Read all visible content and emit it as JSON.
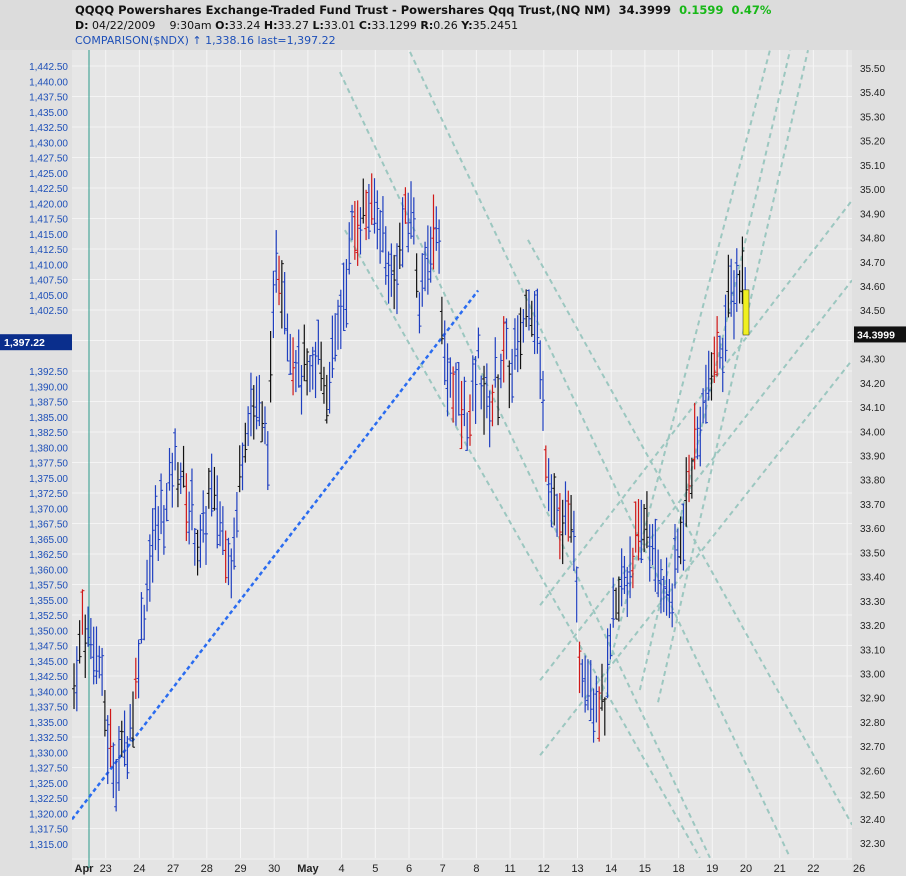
{
  "header": {
    "title": "QQQQ Powershares Exchange-Traded Fund Trust - Powershares Qqq Trust,(NQ NM)",
    "last": "34.3999",
    "change": "0.1599",
    "change_pct": "0.47%",
    "d_label": "D:",
    "date": "04/22/2009",
    "time": "9:30am",
    "o_label": "O:",
    "open": "33.24",
    "h_label": "H:",
    "high": "33.27",
    "l_label": "L:",
    "low": "33.01",
    "c_label": "C:",
    "close": "33.1299",
    "r_label": "R:",
    "range": "0.26",
    "y_label": "Y:",
    "prev": "35.2451",
    "comparison": "COMPARISON($NDX) ↑ 1,338.16 last=1,397.22"
  },
  "chart_data": {
    "type": "bar",
    "title": "QQQQ Powershares Exchange-Traded Fund Trust",
    "left_axis": {
      "ylim": [
        1312.5,
        1442.5
      ],
      "step": 2.5,
      "current_label": "1,397.22",
      "current": 1397.22
    },
    "right_axis": {
      "ylim": [
        32.3,
        35.5
      ],
      "step": 0.1,
      "current_label": "34.3999",
      "current": 34.3999
    },
    "x_ticks": [
      "Apr",
      "23",
      "24",
      "27",
      "28",
      "29",
      "30",
      "May",
      "4",
      "5",
      "6",
      "7",
      "8",
      "11",
      "12",
      "13",
      "14",
      "15",
      "18",
      "19",
      "20",
      "21",
      "22",
      "26"
    ],
    "bar_mids_quarter_day": [
      1340,
      1352,
      1348,
      1345,
      1332,
      1328,
      1330,
      1338,
      1350,
      1362,
      1368,
      1370,
      1378,
      1375,
      1368,
      1362,
      1372,
      1370,
      1365,
      1362,
      1380,
      1388,
      1385,
      1380,
      1412,
      1405,
      1395,
      1392,
      1390,
      1395,
      1390,
      1395,
      1405,
      1415,
      1418,
      1420,
      1418,
      1412,
      1408,
      1415,
      1420,
      1405,
      1410,
      1418,
      1395,
      1390,
      1385,
      1385,
      1395,
      1385,
      1390,
      1395,
      1392,
      1398,
      1405,
      1400,
      1380,
      1372,
      1365,
      1370,
      1345,
      1342,
      1340,
      1338,
      1350,
      1358,
      1360,
      1365,
      1368,
      1360,
      1358,
      1355,
      1365,
      1375,
      1382,
      1388,
      1395,
      1398,
      1405,
      1408
    ],
    "bar_range": 8,
    "last_bar": {
      "t": 20,
      "high": 1405.8,
      "low": 1398.4
    },
    "trend_line": [
      [
        0,
        1319
      ],
      [
        12.05,
        1405.7
      ]
    ],
    "channel_lines": [
      [
        [
          7.95,
          1441.5
        ],
        [
          18.93,
          1312.7
        ]
      ],
      [
        [
          10.03,
          1444.8
        ],
        [
          21.31,
          1312.7
        ]
      ],
      [
        [
          8.1,
          1415.6
        ],
        [
          18.63,
          1312.7
        ]
      ],
      [
        [
          13.53,
          1414.0
        ],
        [
          23.15,
          1318.1
        ]
      ],
      [
        [
          13.89,
          1354.1
        ],
        [
          23.15,
          1420.5
        ]
      ],
      [
        [
          13.89,
          1341.8
        ],
        [
          23.15,
          1407.4
        ]
      ],
      [
        [
          13.89,
          1329.5
        ],
        [
          23.15,
          1394.3
        ]
      ],
      [
        [
          15.67,
          1338.6
        ],
        [
          20.71,
          1445.1
        ]
      ],
      [
        [
          16.85,
          1340.2
        ],
        [
          21.31,
          1445.1
        ]
      ],
      [
        [
          17.39,
          1338.2
        ],
        [
          21.84,
          1445.1
        ]
      ]
    ]
  }
}
